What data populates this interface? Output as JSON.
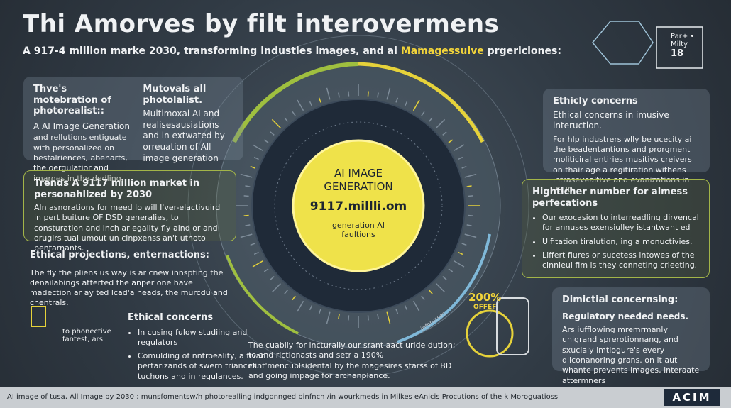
{
  "header": {
    "title": "Thi Amorves by filt interovermens",
    "subtitle": "A 917-4 million marke 2030, transforming industies images, and al",
    "subtitle_highlight": "Mamagessuive",
    "subtitle_end": "prgericiones:",
    "badge_line": "Par+ • Milty",
    "badge_number": "18"
  },
  "left_panel": {
    "col1_title": "Thve's motebration of photorealist::",
    "col1_lead": "A AI Image Generation",
    "col1_body": "and rellutions entiguate with personalized on bestalriences, abenarts, the oergulatior and imarges in the dedling.",
    "col2_title": "Mutovals all photolalist.",
    "col2_body": "Multimoxal AI and realisesausiations and in extwated by orreuation of All image generation"
  },
  "trends_panel": {
    "title": "Trends A 9117 million market in personahlized by 2030",
    "body": "Aln asnorations for meed lo will I'ver-elactivuird in pert buiture OF DSD generalies, to consturation and inch ar egality fly aind or and orugirs tual umout un cinpxenss an't uthoto pentarnants."
  },
  "projections": {
    "title": "Ethical projections, enternactions:",
    "body": "The fly the pliens us way is ar cnew innspting the denailabings atterted the anper one have madection ar ay ted lcad'a neads, the murcdu and chentrals."
  },
  "icon_note": "to phonective fantest, ars",
  "ethical_list": {
    "title": "Ethical concerns",
    "items": [
      "In cusing fulow studiing and regulators",
      "Comulding of nntroeality,'a fivar pertarizands of swern triances. tuchons and in regulances."
    ]
  },
  "center": {
    "title": "AI IMAGE GENERATION",
    "value": "9117.millli.om",
    "caption": "generation AI faultions",
    "offer_big": "200%",
    "offer_small": "OFFEF",
    "ring_label": "inforusses",
    "body": "The cuablly for incturally our srant aact uride dution; to and rictionasts and setr a 190% clint'mencublsidental by the magesires starss of BD and going impage for archanplance."
  },
  "right_panels": [
    {
      "title": "Ethicly concerns",
      "subtitle": "Ethical concerns in imusive inteructlon.",
      "body": "For hlp industrers wlly be ucecity ai the beadentantions and prorgment moliticiral entiries musitivs creivers on thair age a regitiration withens intrasevealtive and evanizations in 2030."
    },
    {
      "title": "Highticher number for almess perfecations",
      "items": [
        "Our exocasion to interreadling dirvencal for annuses exensiulley istantwant ed",
        "Uifitation tiralution, ing a monuctivies.",
        "Liffert flures or sucetess intowes of the cinnieul fim is they conneting crieeting."
      ]
    },
    {
      "title": "Dimictial concernsing:",
      "subtitle": "Regulatory needed needs.",
      "body": "Ars iufflowing mremrmanly unigrand sprerotionnang, and sxucialy imtlogure's every diiconanoring grans. on it aut whante prevents images, interaate attermners"
    }
  ],
  "footer": {
    "text": "AI image of tusa, All Image by 2030 ; munsfomentsw/h photorealling indgonnged binfncn /in wourkmeds in Milkes eAnicis Procutions of the k Moroguatioss",
    "logo": "ACIM"
  }
}
